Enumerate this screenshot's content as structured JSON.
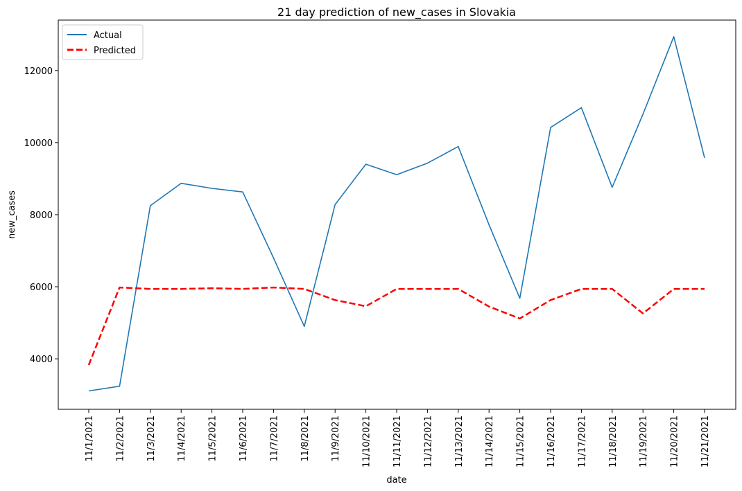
{
  "chart_data": {
    "type": "line",
    "title": "21 day prediction of new_cases in Slovakia",
    "xlabel": "date",
    "ylabel": "new_cases",
    "ylim": [
      2600,
      13400
    ],
    "yticks": [
      4000,
      6000,
      8000,
      10000,
      12000
    ],
    "grid": false,
    "legend_position": "upper-left",
    "categories": [
      "11/1/2021",
      "11/2/2021",
      "11/3/2021",
      "11/4/2021",
      "11/5/2021",
      "11/6/2021",
      "11/7/2021",
      "11/8/2021",
      "11/9/2021",
      "11/10/2021",
      "11/11/2021",
      "11/12/2021",
      "11/13/2021",
      "11/14/2021",
      "11/15/2021",
      "11/16/2021",
      "11/17/2021",
      "11/18/2021",
      "11/19/2021",
      "11/20/2021",
      "11/21/2021"
    ],
    "series": [
      {
        "name": "Actual",
        "color": "#1f77b4",
        "style": "solid",
        "values": [
          3110,
          3240,
          8250,
          8870,
          8730,
          8630,
          6800,
          4900,
          8280,
          9400,
          9110,
          9430,
          9890,
          7720,
          5680,
          10420,
          10970,
          8760,
          10790,
          12940,
          9580
        ]
      },
      {
        "name": "Predicted",
        "color": "#ff0000",
        "style": "dashed",
        "values": [
          3830,
          5980,
          5940,
          5940,
          5960,
          5940,
          5980,
          5940,
          5630,
          5460,
          5940,
          5940,
          5940,
          5450,
          5120,
          5630,
          5940,
          5940,
          5260,
          5940,
          5940
        ]
      }
    ]
  }
}
